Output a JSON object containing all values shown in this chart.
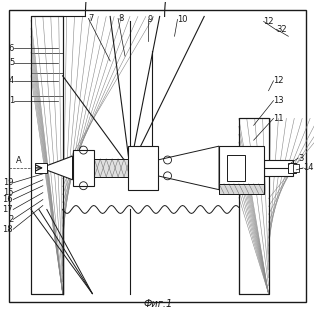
{
  "bg_color": "#ffffff",
  "line_color": "#1a1a1a",
  "fig_width": 3.16,
  "fig_height": 3.17,
  "dpi": 100,
  "caption": "Фиг.1"
}
